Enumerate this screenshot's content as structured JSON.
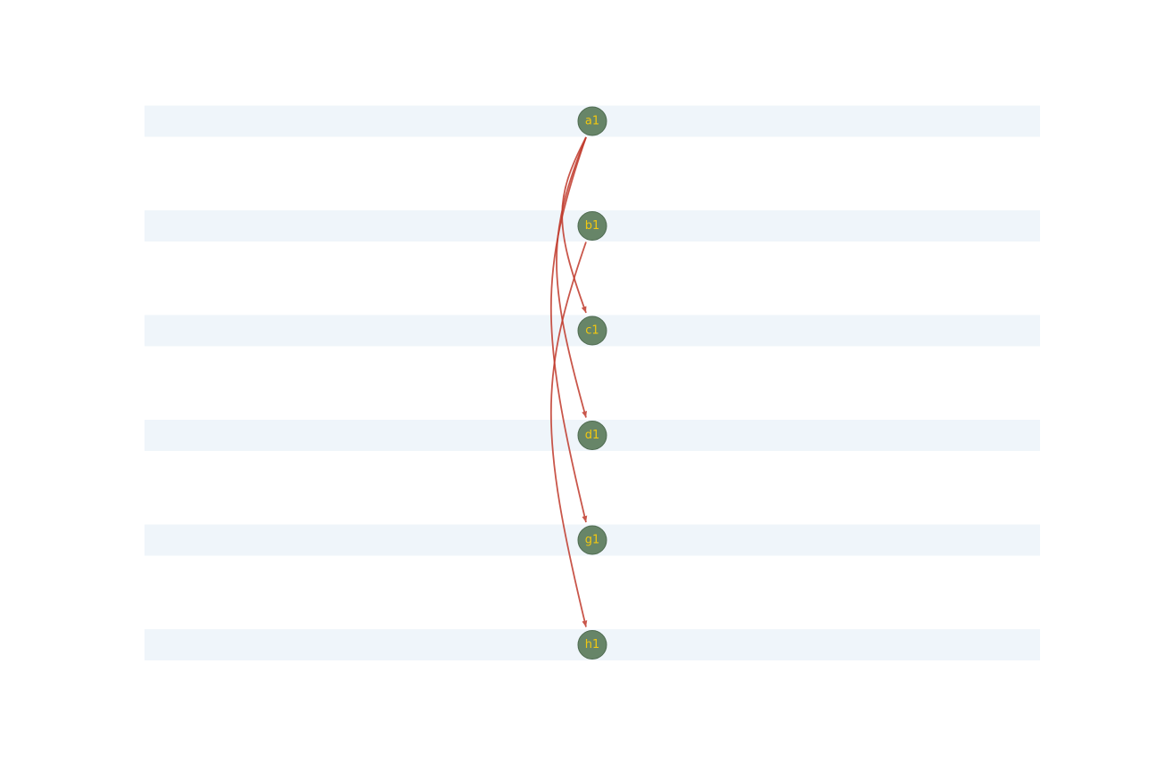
{
  "diagram": {
    "colors": {
      "lane": "#eff5fa",
      "node_fill": "#678568",
      "node_label": "#f2c811",
      "edge": "#c0392b"
    },
    "nodes": [
      {
        "id": "a1",
        "label": "a1"
      },
      {
        "id": "b1",
        "label": "b1"
      },
      {
        "id": "c1",
        "label": "c1"
      },
      {
        "id": "d1",
        "label": "d1"
      },
      {
        "id": "g1",
        "label": "g1"
      },
      {
        "id": "h1",
        "label": "h1"
      }
    ],
    "edges": [
      {
        "from": "a1",
        "to": "c1"
      },
      {
        "from": "a1",
        "to": "d1"
      },
      {
        "from": "a1",
        "to": "g1"
      },
      {
        "from": "b1",
        "to": "h1"
      }
    ]
  }
}
